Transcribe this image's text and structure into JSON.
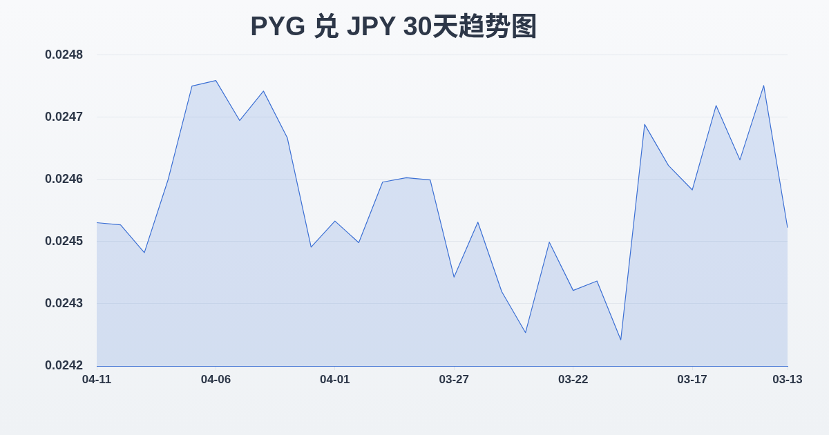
{
  "chart_data": {
    "type": "area",
    "title": "PYG 兑 JPY 30天趋势图",
    "categories": [
      "04-11",
      null,
      null,
      null,
      null,
      "04-06",
      null,
      null,
      null,
      null,
      "04-01",
      null,
      null,
      null,
      null,
      "03-27",
      null,
      null,
      null,
      null,
      "03-22",
      null,
      null,
      null,
      null,
      "03-17",
      null,
      null,
      null,
      "03-13"
    ],
    "values": [
      0.024488,
      0.024484,
      0.024434,
      0.024566,
      0.024734,
      0.024744,
      0.024672,
      0.024725,
      0.024641,
      0.024444,
      0.024491,
      0.024452,
      0.024561,
      0.024569,
      0.024565,
      0.02439,
      0.024489,
      0.024364,
      0.02429,
      0.024453,
      0.024366,
      0.024383,
      0.024277,
      0.024665,
      0.024591,
      0.024547,
      0.024699,
      0.024601,
      0.024735,
      0.024479
    ],
    "color": "#3b6fd4",
    "ylim": [
      0.02423,
      0.02479
    ],
    "yticks": [
      {
        "value": 0.02423,
        "label": "0.0242"
      },
      {
        "value": 0.024342,
        "label": "0.0243"
      },
      {
        "value": 0.024454,
        "label": "0.0245"
      },
      {
        "value": 0.024566,
        "label": "0.0246"
      },
      {
        "value": 0.024678,
        "label": "0.0247"
      },
      {
        "value": 0.02479,
        "label": "0.0248"
      }
    ],
    "grid": "y",
    "marker": "none",
    "line_style": "solid"
  }
}
